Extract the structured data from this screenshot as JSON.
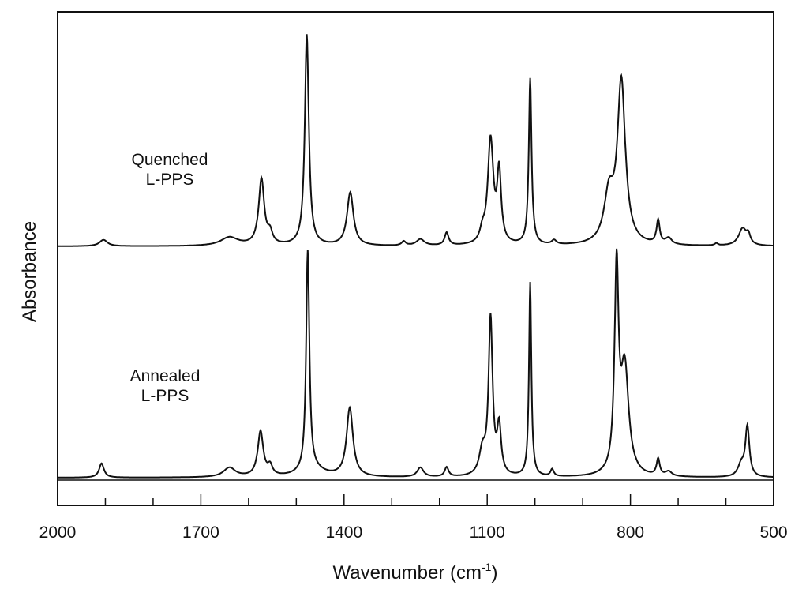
{
  "chart_data": {
    "type": "line",
    "title": "",
    "xlabel": "Wavenumber (cm",
    "xlabel_sup": "-1",
    "xlabel_close": ")",
    "ylabel": "Absorbance",
    "xlim": [
      2000,
      500
    ],
    "x_reversed": true,
    "y_ticks_shown": false,
    "grid": false,
    "x_ticks": [
      2000,
      1700,
      1400,
      1100,
      800,
      500
    ],
    "x_tick_labels": [
      "2000",
      "1700",
      "1400",
      "1100",
      "800",
      "500"
    ],
    "annotations": [
      {
        "lines": [
          "Quenched",
          "L-PPS"
        ]
      },
      {
        "lines": [
          "Annealed",
          "L-PPS"
        ]
      }
    ],
    "series": [
      {
        "offset": 1.0,
        "baseline": 0.0,
        "peaks": [
          [
            1904,
            0.03,
            10
          ],
          [
            1640,
            0.04,
            22
          ],
          [
            1573,
            0.31,
            7
          ],
          [
            1555,
            0.05,
            6
          ],
          [
            1478,
            0.99,
            5
          ],
          [
            1387,
            0.25,
            8
          ],
          [
            1275,
            0.02,
            5
          ],
          [
            1240,
            0.03,
            10
          ],
          [
            1185,
            0.06,
            5
          ],
          [
            1110,
            0.05,
            6
          ],
          [
            1093,
            0.49,
            7
          ],
          [
            1075,
            0.33,
            5
          ],
          [
            1010,
            0.78,
            3.5
          ],
          [
            960,
            0.02,
            6
          ],
          [
            845,
            0.22,
            12
          ],
          [
            819,
            0.76,
            10
          ],
          [
            742,
            0.11,
            4
          ],
          [
            720,
            0.03,
            8
          ],
          [
            620,
            0.01,
            4
          ],
          [
            565,
            0.08,
            10
          ],
          [
            553,
            0.04,
            5
          ]
        ]
      },
      {
        "offset": 0.0,
        "baseline": 0.0,
        "peaks": [
          [
            1908,
            0.06,
            6
          ],
          [
            1640,
            0.04,
            15
          ],
          [
            1575,
            0.19,
            7
          ],
          [
            1555,
            0.04,
            6
          ],
          [
            1476,
            0.93,
            4
          ],
          [
            1465,
            0.03,
            30
          ],
          [
            1388,
            0.29,
            8
          ],
          [
            1240,
            0.04,
            8
          ],
          [
            1185,
            0.04,
            5
          ],
          [
            1110,
            0.1,
            8
          ],
          [
            1093,
            0.66,
            5
          ],
          [
            1075,
            0.2,
            5
          ],
          [
            1010,
            0.82,
            3
          ],
          [
            964,
            0.03,
            4
          ],
          [
            829,
            0.85,
            5
          ],
          [
            812,
            0.45,
            10
          ],
          [
            742,
            0.07,
            4
          ],
          [
            720,
            0.02,
            8
          ],
          [
            555,
            0.21,
            5
          ],
          [
            568,
            0.05,
            8
          ]
        ]
      }
    ]
  }
}
